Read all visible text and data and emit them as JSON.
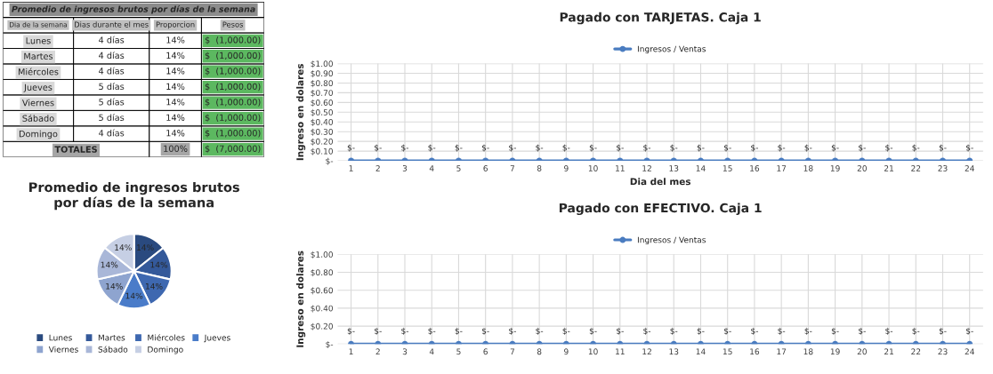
{
  "chart_data": [
    {
      "type": "other",
      "title": "Promedio de ingresos brutos por días de la semana",
      "categories": [
        "Dia de la semana",
        "Dias durante el mes",
        "Proporcion",
        "Pesos"
      ],
      "y_categories": [
        "Lunes",
        "Martes",
        "Miércoles",
        "Jueves",
        "Viernes",
        "Sábado",
        "Domingo",
        "TOTALES"
      ],
      "cell_labels": [
        [
          "4 días",
          "14%",
          "$  (1,000.00)"
        ],
        [
          "4 días",
          "14%",
          "$  (1,000.00)"
        ],
        [
          "4 días",
          "14%",
          "$  (1,000.00)"
        ],
        [
          "5 días",
          "14%",
          "$  (1,000.00)"
        ],
        [
          "5 días",
          "14%",
          "$  (1,000.00)"
        ],
        [
          "5 días",
          "14%",
          "$  (1,000.00)"
        ],
        [
          "4 días",
          "14%",
          "$  (1,000.00)"
        ],
        [
          null,
          "100%",
          "$  (7,000.00)"
        ]
      ]
    },
    {
      "type": "pie",
      "title": "Promedio de ingresos brutos\npor días de la semana",
      "categories": [
        "Lunes",
        "Martes",
        "Miércoles",
        "Jueves",
        "Viernes",
        "Sábado",
        "Domingo"
      ],
      "values": [
        14.29,
        14.29,
        14.29,
        14.29,
        14.29,
        14.29,
        14.26
      ],
      "value_labels": [
        "14%",
        "14%",
        "14%",
        "14%",
        "14%",
        "14%",
        "14%"
      ],
      "colors": [
        "#2a4a7f",
        "#34599a",
        "#3e68b0",
        "#4a7cc9",
        "#8ea4cf",
        "#a9b7d8",
        "#c6cfe4"
      ],
      "legend": "bottom"
    },
    {
      "type": "line",
      "title": "Pagado con TARJETAS. Caja 1",
      "xlabel": "Dia del mes",
      "ylabel": "Ingreso en dolares",
      "categories": [
        "1",
        "2",
        "3",
        "4",
        "5",
        "6",
        "7",
        "8",
        "9",
        "10",
        "11",
        "12",
        "13",
        "14",
        "15",
        "16",
        "17",
        "18",
        "19",
        "20",
        "21",
        "22",
        "23",
        "24"
      ],
      "series": [
        {
          "name": "Ingresos / Ventas",
          "color": "#4a7cc0",
          "values": [
            0,
            0,
            0,
            0,
            0,
            0,
            0,
            0,
            0,
            0,
            0,
            0,
            0,
            0,
            0,
            0,
            0,
            0,
            0,
            0,
            0,
            0,
            0,
            0
          ],
          "value_labels": [
            "$-",
            "$-",
            "$-",
            "$-",
            "$-",
            "$-",
            "$-",
            "$-",
            "$-",
            "$-",
            "$-",
            "$-",
            "$-",
            "$-",
            "$-",
            "$-",
            "$-",
            "$-",
            "$-",
            "$-",
            "$-",
            "$-",
            "$-",
            "$-"
          ]
        }
      ],
      "ylim": [
        0,
        1
      ],
      "yticks": [
        {
          "value": 0,
          "label": "$-"
        },
        {
          "value": 0.1,
          "label": "$0.10"
        },
        {
          "value": 0.2,
          "label": "$0.20"
        },
        {
          "value": 0.3,
          "label": "$0.30"
        },
        {
          "value": 0.4,
          "label": "$0.40"
        },
        {
          "value": 0.5,
          "label": "$0.50"
        },
        {
          "value": 0.6,
          "label": "$0.60"
        },
        {
          "value": 0.7,
          "label": "$0.70"
        },
        {
          "value": 0.8,
          "label": "$0.80"
        },
        {
          "value": 0.9,
          "label": "$0.90"
        },
        {
          "value": 1,
          "label": "$1.00"
        }
      ],
      "grid": true,
      "legend": "top",
      "marker": "circle",
      "line_style": "solid"
    },
    {
      "type": "line",
      "title": "Pagado con EFECTIVO. Caja 1",
      "ylabel": "Ingreso en dolares",
      "categories": [
        "1",
        "2",
        "3",
        "4",
        "5",
        "6",
        "7",
        "8",
        "9",
        "10",
        "11",
        "12",
        "13",
        "14",
        "15",
        "16",
        "17",
        "18",
        "19",
        "20",
        "21",
        "22",
        "23",
        "24"
      ],
      "series": [
        {
          "name": "Ingresos / Ventas",
          "color": "#4a7cc0",
          "values": [
            0,
            0,
            0,
            0,
            0,
            0,
            0,
            0,
            0,
            0,
            0,
            0,
            0,
            0,
            0,
            0,
            0,
            0,
            0,
            0,
            0,
            0,
            0,
            0
          ],
          "value_labels": [
            "$-",
            "$-",
            "$-",
            "$-",
            "$-",
            "$-",
            "$-",
            "$-",
            "$-",
            "$-",
            "$-",
            "$-",
            "$-",
            "$-",
            "$-",
            "$-",
            "$-",
            "$-",
            "$-",
            "$-",
            "$-",
            "$-",
            "$-",
            "$-"
          ]
        }
      ],
      "ylim": [
        0,
        1
      ],
      "yticks": [
        {
          "value": 0,
          "label": "$-"
        },
        {
          "value": 0.2,
          "label": "$0.20"
        },
        {
          "value": 0.4,
          "label": "$0.40"
        },
        {
          "value": 0.6,
          "label": "$0.60"
        },
        {
          "value": 0.8,
          "label": "$0.80"
        },
        {
          "value": 1,
          "label": "$1.00"
        }
      ],
      "grid": true,
      "legend": "top",
      "marker": "circle",
      "line_style": "solid"
    }
  ]
}
